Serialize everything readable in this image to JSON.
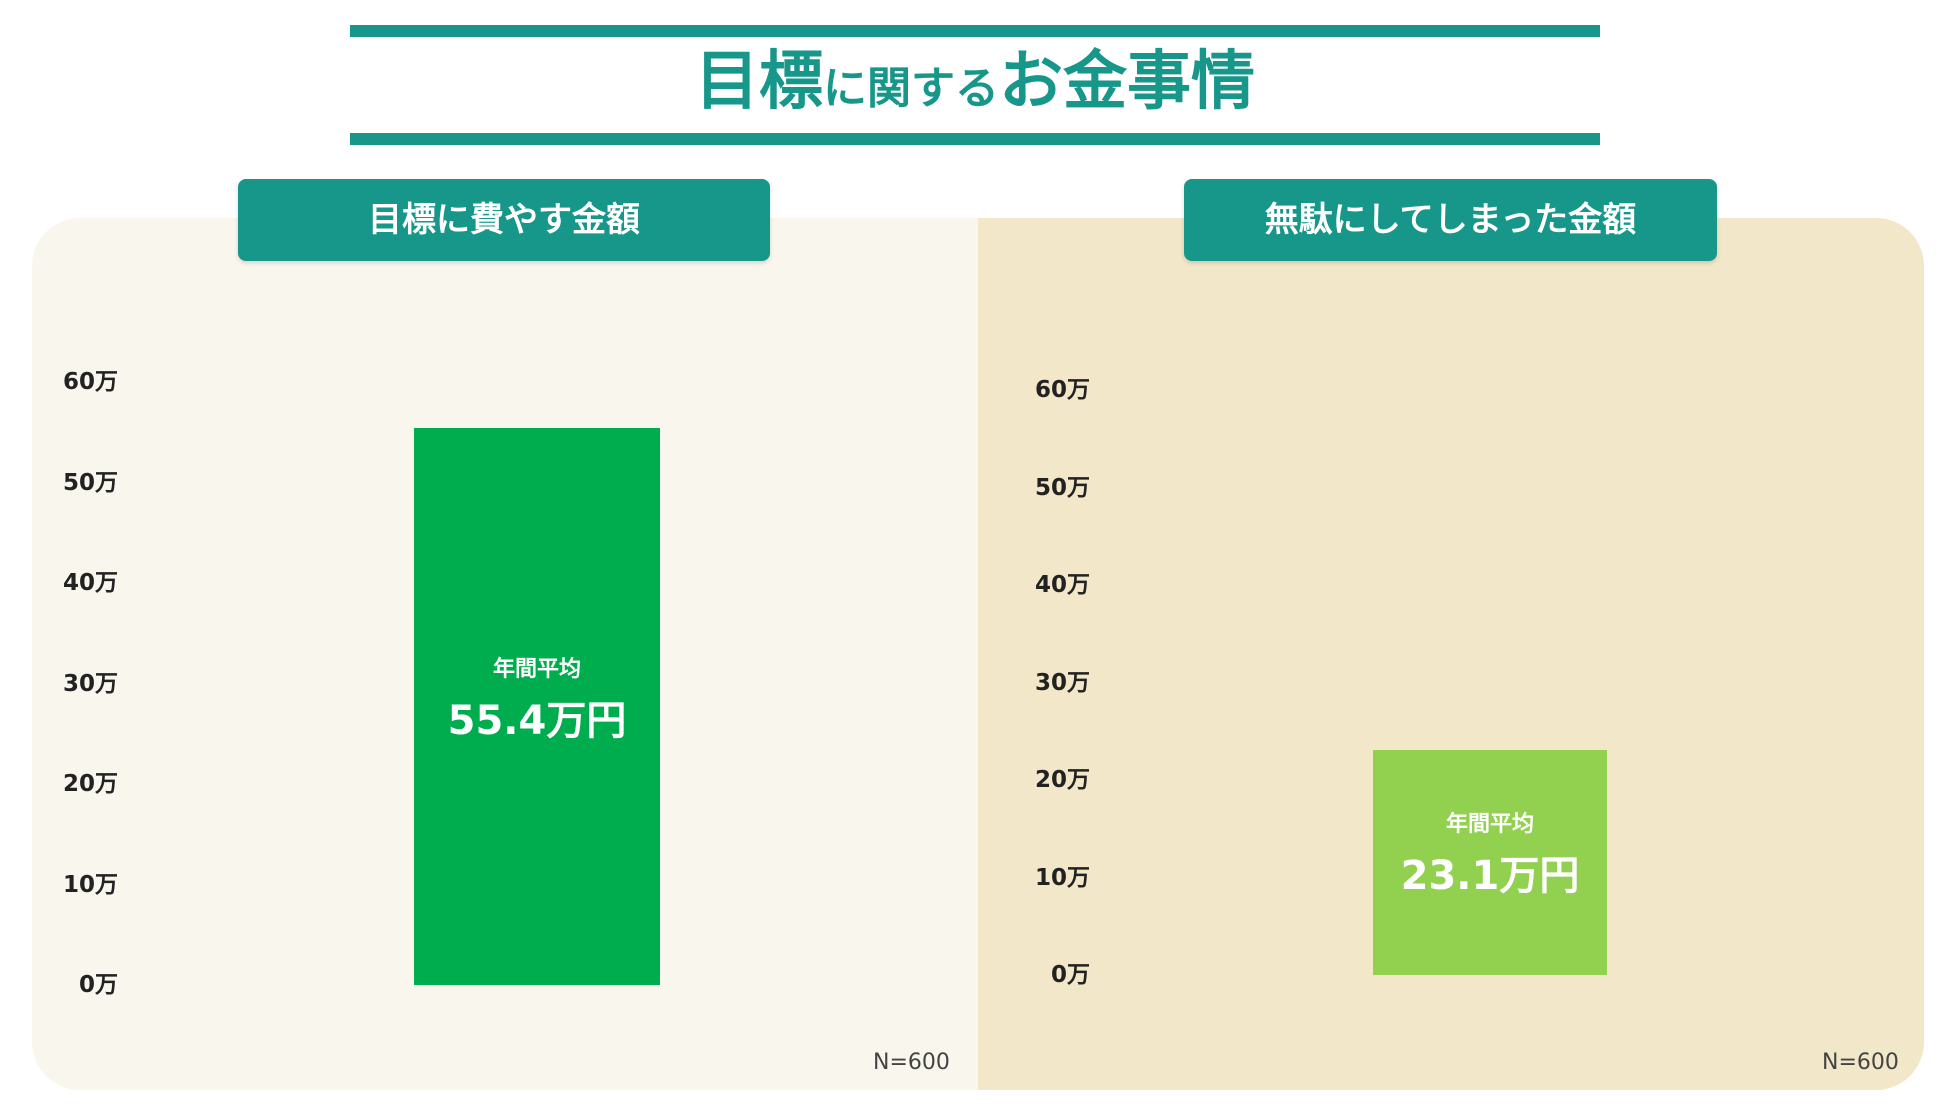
{
  "title": {
    "part1": "目標",
    "part2": "に関する",
    "part3": "お金事情"
  },
  "colors": {
    "accent": "#17968a",
    "left_panel_bg": "#f9f6ed",
    "right_panel_bg": "#f2e7c8",
    "bar_left": "#00ad4e",
    "bar_right": "#92d050"
  },
  "chart_data": [
    {
      "type": "bar",
      "title": "目標に費やす金額",
      "yticks": [
        "0万",
        "10万",
        "20万",
        "30万",
        "40万",
        "50万",
        "60万"
      ],
      "ylim": [
        0,
        60
      ],
      "values": [
        55.4
      ],
      "bar_caption": "年間平均",
      "bar_value_label": "55.4万円",
      "note": "N=600"
    },
    {
      "type": "bar",
      "title": "無駄にしてしまった金額",
      "yticks": [
        "0万",
        "10万",
        "20万",
        "30万",
        "40万",
        "50万",
        "60万"
      ],
      "ylim": [
        0,
        60
      ],
      "values": [
        23.1
      ],
      "bar_caption": "年間平均",
      "bar_value_label": "23.1万円",
      "note": "N=600"
    }
  ]
}
